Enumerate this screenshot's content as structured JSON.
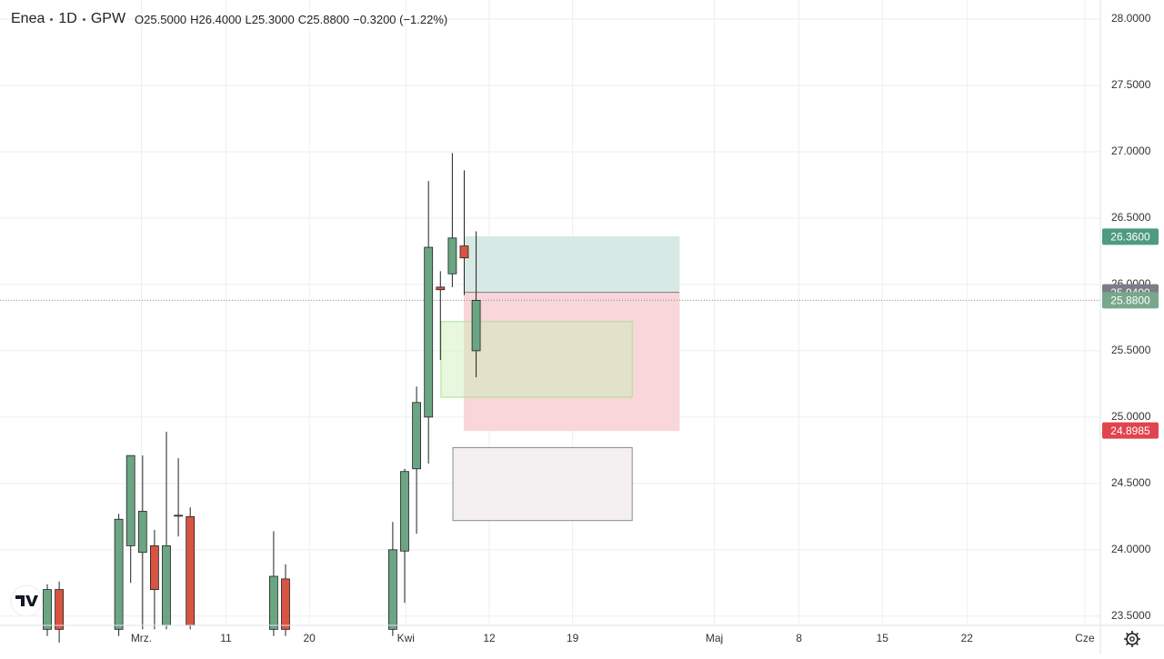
{
  "header": {
    "symbol": "Enea",
    "interval": "1D",
    "exchange": "GPW",
    "ohlc": [
      "O25.5000",
      "H26.4000",
      "L25.3000",
      "C25.8800",
      "−0.3200 (−1.22%)"
    ]
  },
  "chart_data": {
    "type": "candlestick",
    "up_color": "#6ba583",
    "down_color": "#d75442",
    "grid": true,
    "x": [
      0,
      1,
      6,
      7,
      8,
      9,
      10,
      11,
      12,
      19,
      20,
      29,
      30,
      31,
      32,
      33,
      34,
      35,
      36
    ],
    "open": [
      23.4,
      23.7,
      23.4,
      24.03,
      23.98,
      24.03,
      23.43,
      24.26,
      24.25,
      23.4,
      23.78,
      23.4,
      23.99,
      24.61,
      25.0,
      25.98,
      26.08,
      26.29,
      25.5
    ],
    "high": [
      23.74,
      23.76,
      24.27,
      24.71,
      24.71,
      24.15,
      24.89,
      24.69,
      24.32,
      24.14,
      23.89,
      24.21,
      24.61,
      25.23,
      26.78,
      26.1,
      26.99,
      26.86,
      26.4
    ],
    "low": [
      23.35,
      23.3,
      23.35,
      23.75,
      23.4,
      23.4,
      23.4,
      24.1,
      23.4,
      23.35,
      23.35,
      23.35,
      23.6,
      24.12,
      24.65,
      25.43,
      25.98,
      25.92,
      25.3
    ],
    "close": [
      23.7,
      23.4,
      24.23,
      24.71,
      24.29,
      23.7,
      24.03,
      24.26,
      23.43,
      23.8,
      23.4,
      24.0,
      24.59,
      25.11,
      26.28,
      25.96,
      26.35,
      26.2,
      25.88
    ],
    "xlim": [
      -3.97,
      88.4
    ],
    "xticks": [
      {
        "value": 7.9,
        "label": "Mrz."
      },
      {
        "value": 15,
        "label": "11"
      },
      {
        "value": 22,
        "label": "20"
      },
      {
        "value": 30.1,
        "label": "Kwi"
      },
      {
        "value": 37.1,
        "label": "12"
      },
      {
        "value": 44.1,
        "label": "19"
      },
      {
        "value": 56,
        "label": "Maj"
      },
      {
        "value": 63.1,
        "label": "8"
      },
      {
        "value": 70.1,
        "label": "15"
      },
      {
        "value": 77.2,
        "label": "22"
      },
      {
        "value": 87.1,
        "label": "Cze"
      }
    ],
    "ylim": [
      23.43,
      28.144
    ],
    "yticks": [
      {
        "value": 23.5,
        "label": "23.5000"
      },
      {
        "value": 24,
        "label": "24.0000"
      },
      {
        "value": 24.5,
        "label": "24.5000"
      },
      {
        "value": 25,
        "label": "25.0000"
      },
      {
        "value": 25.5,
        "label": "25.5000"
      },
      {
        "value": 26,
        "label": "26.0000"
      },
      {
        "value": 26.5,
        "label": "26.5000"
      },
      {
        "value": 27,
        "label": "27.0000"
      },
      {
        "value": 27.5,
        "label": "27.5000"
      },
      {
        "value": 28,
        "label": "28.0000"
      }
    ],
    "current_price": 25.88,
    "zones": [
      {
        "x": [
          35,
          53.05
        ],
        "values": [
          26.36,
          25.94
        ],
        "color": "#d6e9e5",
        "stroke": "#d6e9e5"
      },
      {
        "x": [
          35,
          53.05
        ],
        "values": [
          25.94,
          24.8985
        ],
        "color": "#f8d6d9",
        "stroke": "#f8d6d9"
      },
      {
        "x": [
          33.05,
          49.1
        ],
        "values": [
          25.72,
          25.15
        ],
        "color": "rgba(205,240,185,0.45)",
        "stroke": "#a6e28f"
      },
      {
        "x": [
          34.05,
          49.1
        ],
        "values": [
          24.77,
          24.22
        ],
        "color": "#f4eff1",
        "stroke": "#8a8a8a"
      }
    ],
    "price_labels": [
      {
        "value": 26.36,
        "label": "26.3600",
        "color": "#4f9a82"
      },
      {
        "value": 25.94,
        "label": "25.9400",
        "color": "#7a7d86"
      },
      {
        "value": 25.88,
        "label": "25.8800",
        "color": "#78a78c"
      },
      {
        "value": 24.8985,
        "label": "24.8985",
        "color": "#e0444f"
      }
    ]
  }
}
